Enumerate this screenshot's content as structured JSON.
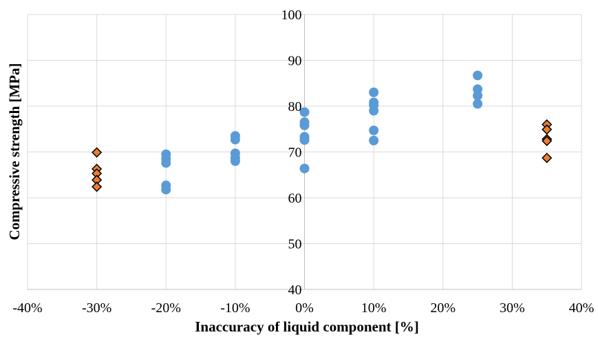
{
  "chart_data": {
    "type": "scatter",
    "xlabel": "Inaccuracy of liquid component [%]",
    "ylabel": "Compressive strength [MPa]",
    "xlim": [
      -40,
      40
    ],
    "ylim": [
      40,
      100
    ],
    "x_ticks": [
      -40,
      -30,
      -20,
      -10,
      0,
      10,
      20,
      30,
      40
    ],
    "x_tick_labels": [
      "-40%",
      "-30%",
      "-20%",
      "-10%",
      "0%",
      "10%",
      "20%",
      "30%",
      "40%"
    ],
    "y_ticks": [
      40,
      50,
      60,
      70,
      80,
      90,
      100
    ],
    "y_tick_labels": [
      "40",
      "50",
      "60",
      "70",
      "80",
      "90",
      "100"
    ],
    "grid": true,
    "legend": "none",
    "series": [
      {
        "marker": "circle",
        "color": "#5B9BD5",
        "points": [
          [
            -20,
            69.5
          ],
          [
            -20,
            68.5
          ],
          [
            -20,
            67.6
          ],
          [
            -20,
            62.7
          ],
          [
            -20,
            61.8
          ],
          [
            -10,
            73.5
          ],
          [
            -10,
            72.7
          ],
          [
            -10,
            69.7
          ],
          [
            -10,
            68.7
          ],
          [
            -10,
            68.0
          ],
          [
            0,
            78.7
          ],
          [
            0,
            76.5
          ],
          [
            0,
            75.8
          ],
          [
            0,
            73.3
          ],
          [
            0,
            72.6
          ],
          [
            0,
            66.4
          ],
          [
            10,
            83.0
          ],
          [
            10,
            80.8
          ],
          [
            10,
            80.2
          ],
          [
            10,
            79.0
          ],
          [
            10,
            74.7
          ],
          [
            10,
            72.5
          ],
          [
            25,
            86.7
          ],
          [
            25,
            83.7
          ],
          [
            25,
            82.3
          ],
          [
            25,
            80.5
          ]
        ]
      },
      {
        "marker": "diamond",
        "color": "#ED7D31",
        "edge_color": "#000000",
        "points": [
          [
            -30,
            69.9
          ],
          [
            -30,
            66.3
          ],
          [
            -30,
            65.3
          ],
          [
            -30,
            63.9
          ],
          [
            -30,
            62.4
          ],
          [
            35,
            76.0
          ],
          [
            35,
            74.9
          ],
          [
            35,
            72.8
          ],
          [
            35,
            72.4
          ],
          [
            35,
            68.7
          ]
        ]
      }
    ]
  }
}
